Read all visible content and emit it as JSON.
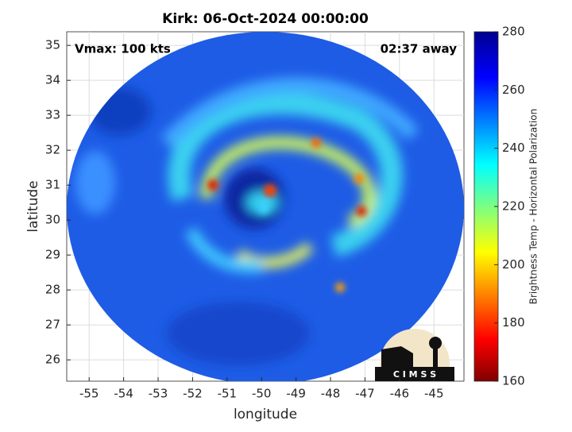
{
  "map": {
    "title": "Kirk: 06-Oct-2024 00:00:00",
    "annotation_left": "Vmax: 100 kts",
    "annotation_right": "02:37 away",
    "xlabel": "longitude",
    "ylabel": "latitude",
    "xlim": [
      -55.65,
      -44.13
    ],
    "ylim": [
      25.39,
      35.39
    ],
    "xticks": [
      -55,
      -54,
      -53,
      -52,
      -51,
      -50,
      -49,
      -48,
      -47,
      -46,
      -45
    ],
    "yticks": [
      26,
      27,
      28,
      29,
      30,
      31,
      32,
      33,
      34,
      35
    ],
    "grid": true,
    "colorbar": {
      "label": "Brightness Temp - Horizontal Polarization",
      "lim": [
        160,
        280
      ],
      "ticks": [
        160,
        180,
        200,
        220,
        240,
        260,
        280
      ]
    },
    "logo_text": "C I M S S"
  }
}
